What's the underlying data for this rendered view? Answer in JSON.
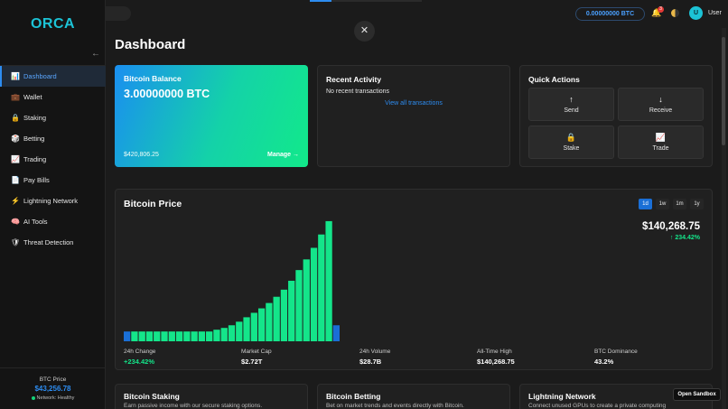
{
  "sidebar": {
    "logo": "ORCA",
    "collapse_icon": "←",
    "items": [
      {
        "label": "Dashboard",
        "icon": "📊",
        "active": true
      },
      {
        "label": "Wallet",
        "icon": "💼"
      },
      {
        "label": "Staking",
        "icon": "🔒"
      },
      {
        "label": "Betting",
        "icon": "🎲"
      },
      {
        "label": "Trading",
        "icon": "📈"
      },
      {
        "label": "Pay Bills",
        "icon": "📄"
      },
      {
        "label": "Lightning Network",
        "icon": "⚡"
      },
      {
        "label": "AI Tools",
        "icon": "🧠"
      },
      {
        "label": "Threat Detection",
        "icon": "🛡"
      }
    ],
    "footer": {
      "label": "BTC Price",
      "value": "$43,256.78",
      "network": "Network: Healthy"
    }
  },
  "header": {
    "btc_balance": "0.00000000 BTC",
    "notifications": "3",
    "avatar_letter": "U",
    "username": "User"
  },
  "modal": {
    "close_label": "✕"
  },
  "dashboard": {
    "title": "Dashboard",
    "balance_card": {
      "title": "Bitcoin Balance",
      "amount": "3.00000000 BTC",
      "usd": "$420,806.25",
      "manage": "Manage →"
    },
    "activity_card": {
      "title": "Recent Activity",
      "empty": "No recent transactions",
      "view_all": "View all transactions"
    },
    "quick_actions": {
      "title": "Quick Actions",
      "actions": [
        {
          "label": "Send",
          "icon": "↑"
        },
        {
          "label": "Receive",
          "icon": "↓"
        },
        {
          "label": "Stake",
          "icon": "🔒"
        },
        {
          "label": "Trade",
          "icon": "📈"
        }
      ]
    },
    "price_card": {
      "title": "Bitcoin Price",
      "ranges": [
        "1d",
        "1w",
        "1m",
        "1y"
      ],
      "active_range": "1d",
      "current_price": "$140,268.75",
      "change": "↑ 234.42%",
      "stats": [
        {
          "label": "24h Change",
          "value": "+234.42%",
          "green": true
        },
        {
          "label": "Market Cap",
          "value": "$2.72T"
        },
        {
          "label": "24h Volume",
          "value": "$28.7B"
        },
        {
          "label": "All-Time High",
          "value": "$140,268.75"
        },
        {
          "label": "BTC Dominance",
          "value": "43.2%"
        }
      ]
    },
    "bottom_cards": [
      {
        "title": "Bitcoin Staking",
        "desc": "Earn passive income with our secure staking options."
      },
      {
        "title": "Bitcoin Betting",
        "desc": "Bet on market trends and events directly with Bitcoin."
      },
      {
        "title": "Lightning Network",
        "desc": "Connect unused GPUs to create a private computing"
      }
    ]
  },
  "sandbox_label": "Open Sandbox",
  "colors": {
    "accent": "#2d8cf0",
    "green": "#14e58a",
    "logo": "#1cc3d6"
  },
  "chart_data": {
    "type": "bar",
    "values": [
      11,
      11,
      11,
      11,
      11,
      11,
      11,
      11,
      11,
      11,
      11,
      11,
      13,
      15,
      18,
      22,
      27,
      32,
      37,
      43,
      50,
      58,
      68,
      80,
      92,
      105,
      120,
      135,
      18
    ],
    "highlight_indices": [
      0,
      28
    ],
    "ylim": [
      0,
      140
    ],
    "colors": {
      "bar": "#14e58a",
      "highlight": "#1a6fd6"
    }
  }
}
